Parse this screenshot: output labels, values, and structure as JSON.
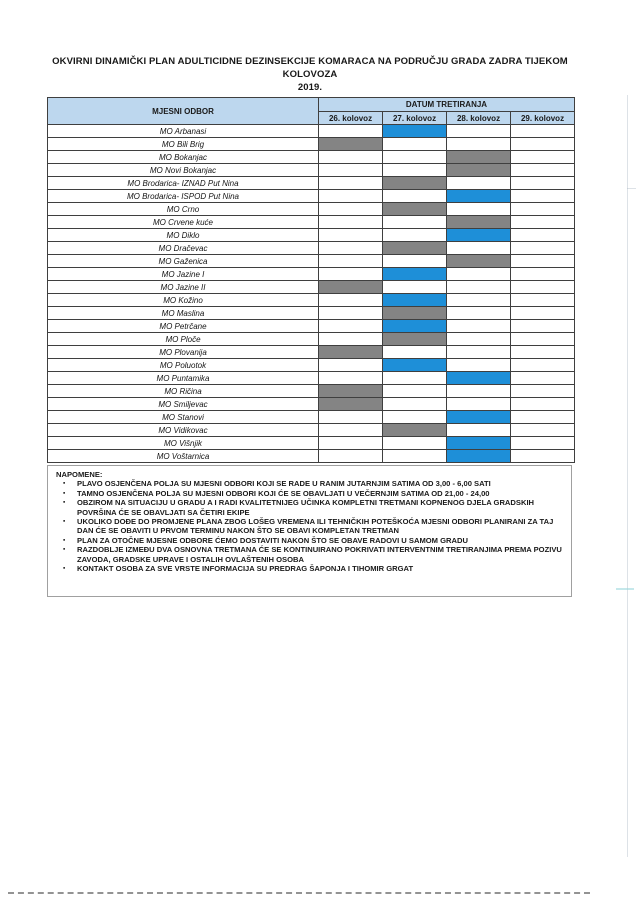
{
  "page": {
    "title_line1": "OKVIRNI DINAMIČKI PLAN ADULTICIDNE DEZINSEKCIJE KOMARACA NA PODRUČJU GRADA ZADRA TIJEKOM KOLOVOZA",
    "title_line2": "2019."
  },
  "table": {
    "col_header": "MJESNI ODBOR",
    "group_header": "DATUM TRETIRANJA",
    "date_headers": [
      "26. kolovoz",
      "27. kolovoz",
      "28. kolovoz",
      "29. kolovoz"
    ],
    "rows": [
      {
        "name": "MO Arbanasi",
        "date": "27. kolovoz",
        "shade": "blue"
      },
      {
        "name": "MO Bili Brig",
        "date": "26. kolovoz",
        "shade": "dark"
      },
      {
        "name": "MO Bokanjac",
        "date": "28. kolovoz",
        "shade": "dark"
      },
      {
        "name": "MO Novi Bokanjac",
        "date": "28. kolovoz",
        "shade": "dark"
      },
      {
        "name": "MO Brodarica- IZNAD Put Nina",
        "date": "27. kolovoz",
        "shade": "dark"
      },
      {
        "name": "MO Brodarica- ISPOD Put Nina",
        "date": "28. kolovoz",
        "shade": "blue"
      },
      {
        "name": "MO Crno",
        "date": "27. kolovoz",
        "shade": "dark"
      },
      {
        "name": "MO Crvene kuće",
        "date": "28. kolovoz",
        "shade": "dark"
      },
      {
        "name": "MO Diklo",
        "date": "28. kolovoz",
        "shade": "blue"
      },
      {
        "name": "MO Dračevac",
        "date": "27. kolovoz",
        "shade": "dark"
      },
      {
        "name": "MO Gaženica",
        "date": "28. kolovoz",
        "shade": "dark"
      },
      {
        "name": "MO Jazine I",
        "date": "27. kolovoz",
        "shade": "blue"
      },
      {
        "name": "MO Jazine II",
        "date": "26. kolovoz",
        "shade": "dark"
      },
      {
        "name": "MO Kožino",
        "date": "27. kolovoz",
        "shade": "blue"
      },
      {
        "name": "MO Maslina",
        "date": "27. kolovoz",
        "shade": "dark"
      },
      {
        "name": "MO Petrčane",
        "date": "27. kolovoz",
        "shade": "blue"
      },
      {
        "name": "MO Ploče",
        "date": "27. kolovoz",
        "shade": "dark"
      },
      {
        "name": "MO Plovanija",
        "date": "26. kolovoz",
        "shade": "dark"
      },
      {
        "name": "MO Poluotok",
        "date": "27. kolovoz",
        "shade": "blue"
      },
      {
        "name": "MO Puntamika",
        "date": "28. kolovoz",
        "shade": "blue"
      },
      {
        "name": "MO Ričina",
        "date": "26. kolovoz",
        "shade": "dark"
      },
      {
        "name": "MO Smiljevac",
        "date": "26. kolovoz",
        "shade": "dark"
      },
      {
        "name": "MO Stanovi",
        "date": "28. kolovoz",
        "shade": "blue"
      },
      {
        "name": "MO Vidikovac",
        "date": "27. kolovoz",
        "shade": "dark"
      },
      {
        "name": "MO Višnjik",
        "date": "28. kolovoz",
        "shade": "blue"
      },
      {
        "name": "MO Voštarnica",
        "date": "28. kolovoz",
        "shade": "blue"
      }
    ]
  },
  "notes": {
    "heading": "NAPOMENE:",
    "items": [
      "PLAVO OSJENČENA POLJA SU MJESNI ODBORI KOJI SE RADE U RANIM JUTARNJIM SATIMA OD 3,00 - 6,00 SATI",
      "TAMNO OSJENČENA POLJA SU MJESNI ODBORI KOJI ĆE SE OBAVLJATI U VEČERNJIM SATIMA OD 21,00 - 24,00",
      "OBZIROM NA SITUACIJU U GRADU A I RADI KVALITETNIJEG UČINKA KOMPLETNI TRETMANI KOPNENOG DJELA GRADSKIH POVRŠINA ĆE SE OBAVLJATI  SA ČETIRI EKIPE",
      "UKOLIKO DOĐE DO PROMJENE PLANA ZBOG LOŠEG VREMENA ILI TEHNIČKIH POTEŠKOĆA MJESNI ODBORI PLANIRANI ZA TAJ DAN ĆE SE OBAVITI U PRVOM TERMINU NAKON ŠTO SE OBAVI KOMPLETAN TRETMAN",
      "PLAN ZA OTOČNE MJESNE ODBORE ĆEMO DOSTAVITI NAKON ŠTO SE OBAVE RADOVI U SAMOM GRADU",
      "RAZDOBLJE IZMEĐU DVA OSNOVNA TRETMANA ĆE SE KONTINUIRANO POKRIVATI INTERVENTNIM TRETIRANJIMA PREMA POZIVU ZAVODA, GRADSKE UPRAVE I OSTALIH OVLAŠTENIH OSOBA",
      "KONTAKT OSOBA ZA SVE VRSTE INFORMACIJA SU PREDRAG ŠAPONJA I TIHOMIR GRGAT"
    ]
  },
  "colors": {
    "header_fill": "#BDD7EE",
    "blue_fill": "#1E8FD8",
    "dark_fill": "#848484"
  }
}
